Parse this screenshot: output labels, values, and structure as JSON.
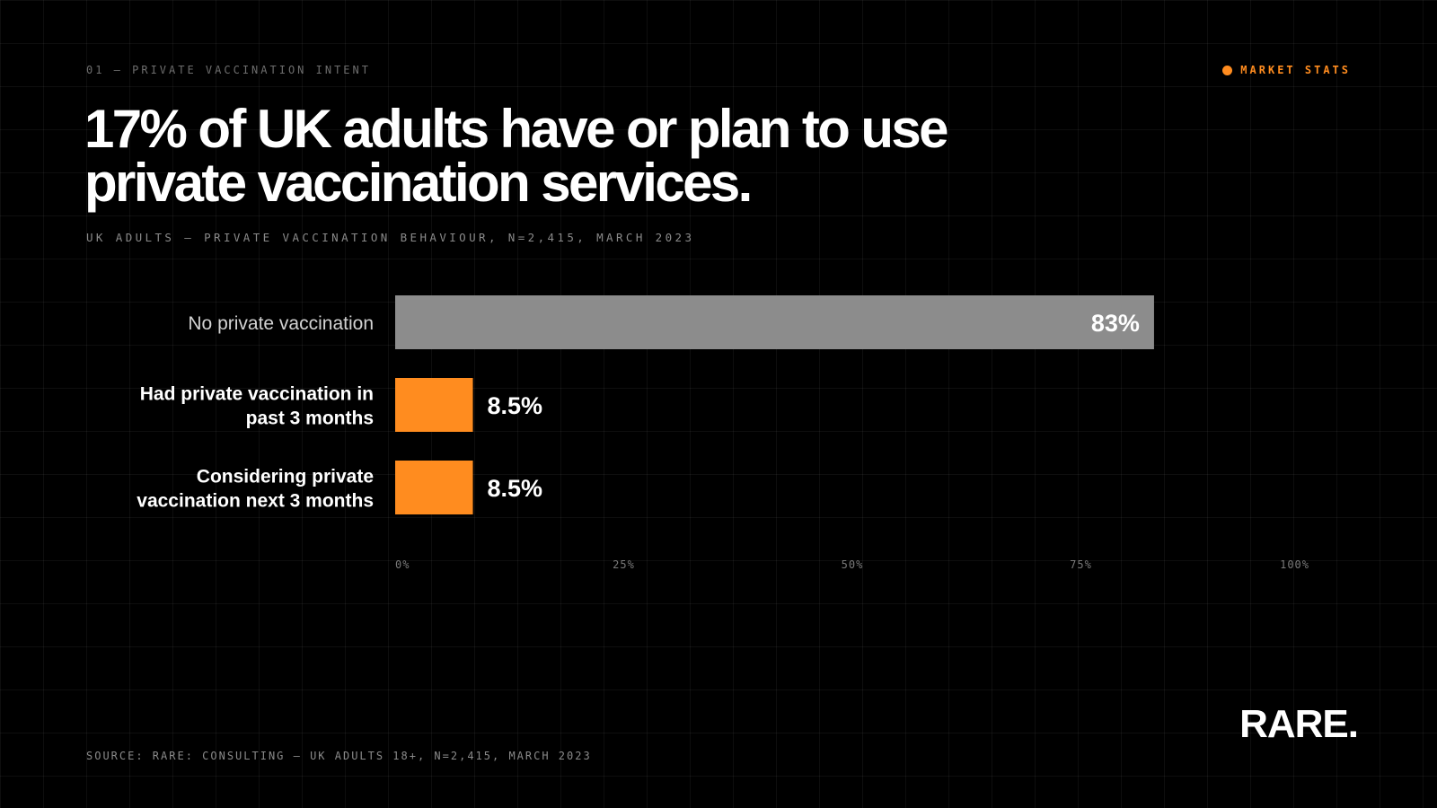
{
  "header": {
    "eyebrow": "01 — PRIVATE VACCINATION INTENT",
    "tag": "MARKET STATS",
    "title": "17% of UK adults have or plan to use private vaccination services.",
    "subtitle": "UK ADULTS — PRIVATE VACCINATION BEHAVIOUR, N=2,415, MARCH 2023"
  },
  "footer": {
    "source": "SOURCE: RARE: CONSULTING — UK ADULTS 18+, N=2,415, MARCH 2023",
    "logo": "RARE."
  },
  "colors": {
    "background": "#000000",
    "accent": "#ff8c1f",
    "neutral_bar": "#8c8c8c",
    "text": "#ffffff",
    "muted_text": "#8a8a8a"
  },
  "chart_data": {
    "type": "bar",
    "orientation": "horizontal",
    "categories": [
      [
        "No private vaccination"
      ],
      [
        "Had private vaccination in",
        "past 3 months"
      ],
      [
        "Considering private",
        "vaccination next 3 months"
      ]
    ],
    "values": [
      83,
      8.5,
      8.5
    ],
    "value_labels": [
      "83%",
      "8.5%",
      "8.5%"
    ],
    "bar_colors": [
      "#8c8c8c",
      "#ff8c1f",
      "#ff8c1f"
    ],
    "xlim": [
      0,
      100
    ],
    "ticks": [
      0,
      25,
      50,
      75,
      100
    ],
    "tick_labels": [
      "0%",
      "25%",
      "50%",
      "75%",
      "100%"
    ],
    "xlabel": "",
    "ylabel": "",
    "grid": true,
    "legend": "none"
  }
}
